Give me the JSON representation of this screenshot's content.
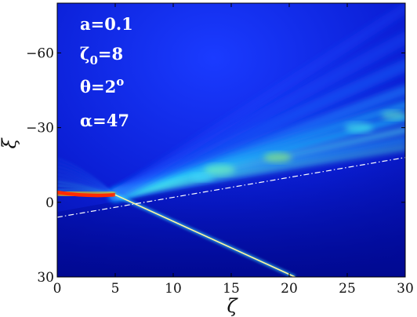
{
  "chart_data": {
    "type": "heatmap",
    "colormap": "jet",
    "xlabel": "ζ",
    "ylabel": "ξ",
    "xlim": [
      0,
      30
    ],
    "ylim": [
      30,
      -80
    ],
    "xticks": [
      "0",
      "5",
      "10",
      "15",
      "20",
      "25",
      "30"
    ],
    "yticks": [
      "−60",
      "−30",
      "0",
      "30"
    ],
    "ytick_values": [
      -60,
      -30,
      0,
      30
    ],
    "annotations": {
      "a": "a=0.1",
      "zeta0_base": "ζ",
      "zeta0_sub": "0",
      "zeta0_rest": "=8",
      "theta": "θ=2",
      "theta_sup": "o",
      "alpha": "α=47"
    },
    "reference_line": {
      "style": "dash-dot",
      "color": "#ffffff",
      "points": [
        [
          0,
          6
        ],
        [
          30,
          -18
        ]
      ]
    },
    "reflected_beam": {
      "points": [
        [
          5,
          -3
        ],
        [
          20.5,
          30
        ]
      ]
    },
    "incident_beam": {
      "center_xi": -3,
      "points": [
        [
          0,
          -4
        ],
        [
          5,
          -3
        ]
      ]
    }
  }
}
